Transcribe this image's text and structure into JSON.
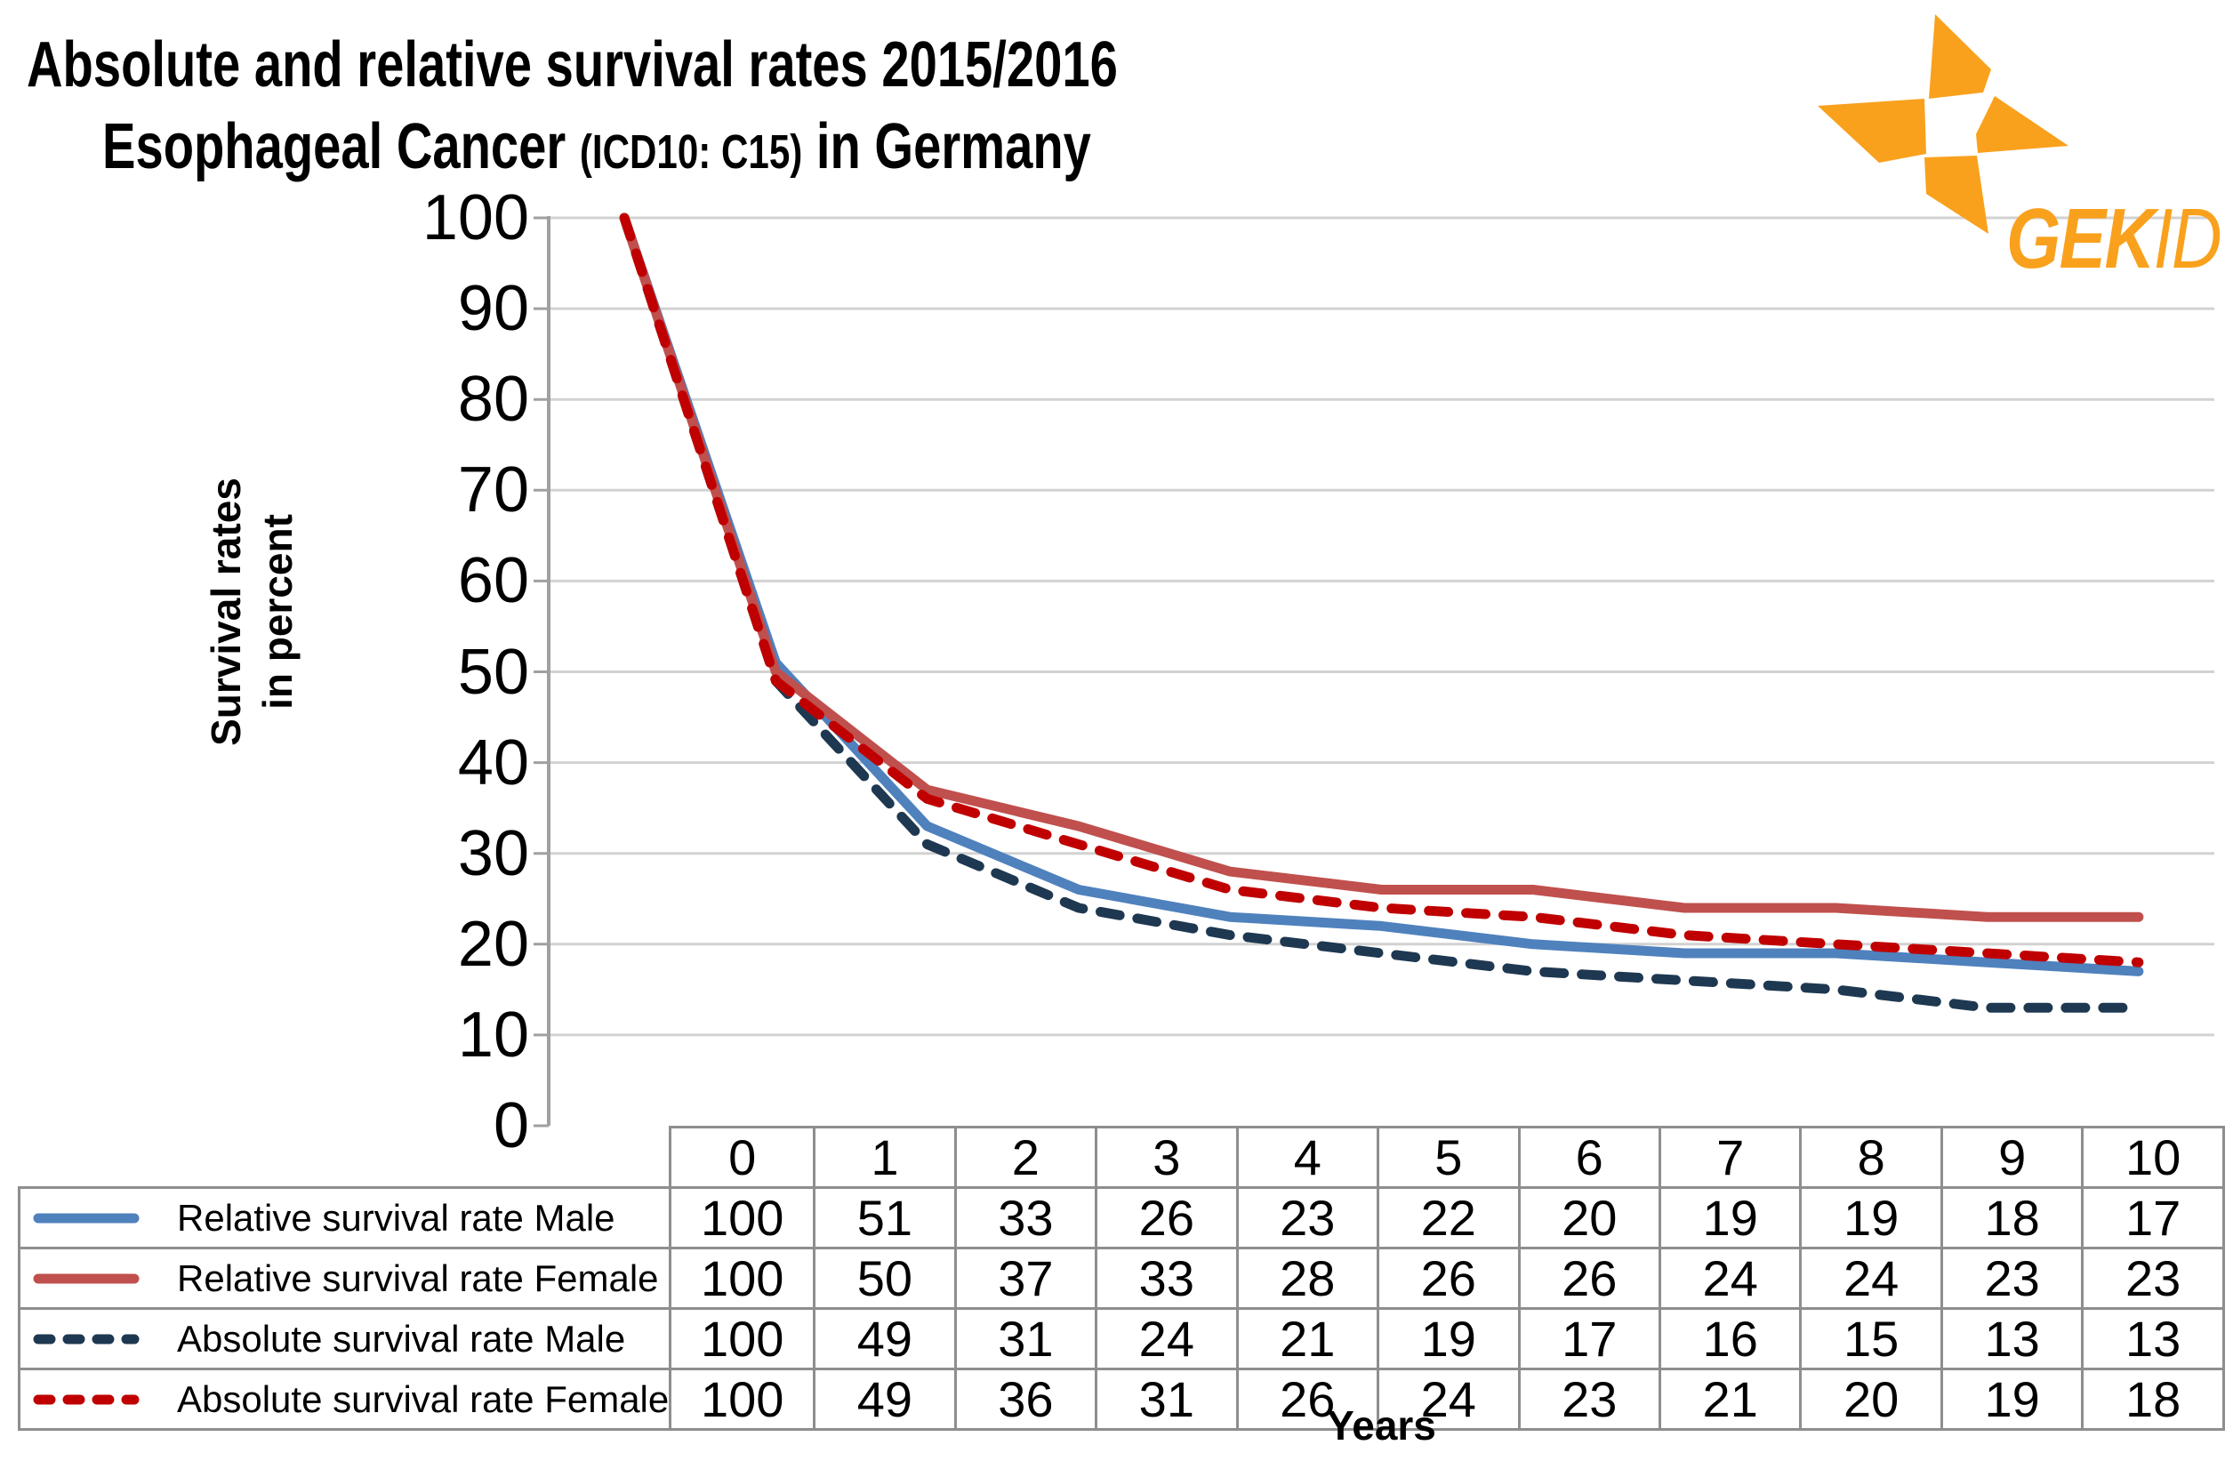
{
  "title": {
    "line1": "Absolute and relative survival rates 2015/2016",
    "line2_main": "Esophageal Cancer",
    "line2_code": "(ICD10: C15)",
    "line2_suffix": "in Germany"
  },
  "logo": {
    "brand_bold": "GEK",
    "brand_italic": "ID",
    "orange": "#F9A11D"
  },
  "chart_data": {
    "type": "line",
    "x": [
      0,
      1,
      2,
      3,
      4,
      5,
      6,
      7,
      8,
      9,
      10
    ],
    "xlabel": "Years",
    "ylabel_lines": [
      "Survival rates",
      "in percent"
    ],
    "ylim": [
      0,
      100
    ],
    "yticks": [
      0,
      10,
      20,
      30,
      40,
      50,
      60,
      70,
      80,
      90,
      100
    ],
    "grid": "horizontal",
    "legend_position": "left-of-data-table",
    "series": [
      {
        "name": "Relative survival rate Male",
        "color": "#4F81BD",
        "dash": false,
        "values": [
          100,
          51,
          33,
          26,
          23,
          22,
          20,
          19,
          19,
          18,
          17
        ]
      },
      {
        "name": "Relative survival rate Female",
        "color": "#C0504D",
        "dash": false,
        "values": [
          100,
          50,
          37,
          33,
          28,
          26,
          26,
          24,
          24,
          23,
          23
        ]
      },
      {
        "name": "Absolute survival rate Male",
        "color": "#1F3851",
        "dash": true,
        "values": [
          100,
          49,
          31,
          24,
          21,
          19,
          17,
          16,
          15,
          13,
          13
        ]
      },
      {
        "name": "Absolute survival rate Female",
        "color": "#C00000",
        "dash": true,
        "values": [
          100,
          49,
          36,
          31,
          26,
          24,
          23,
          21,
          20,
          19,
          18
        ]
      }
    ]
  },
  "colors": {
    "gridline": "#D2D2D2",
    "axis": "#A0A0A0",
    "table_border": "#8E8E8E"
  }
}
